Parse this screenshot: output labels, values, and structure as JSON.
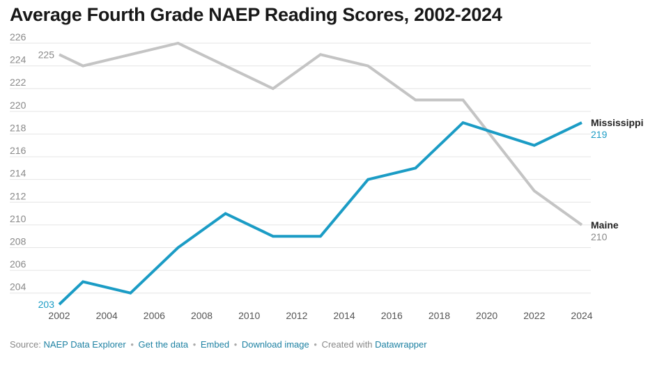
{
  "title": "Average Fourth Grade NAEP Reading Scores, 2002-2024",
  "chart_data": {
    "type": "line",
    "x": [
      2002,
      2003,
      2005,
      2007,
      2009,
      2011,
      2013,
      2015,
      2017,
      2019,
      2022,
      2024
    ],
    "x_ticks": [
      "2002",
      "2004",
      "2006",
      "2008",
      "2010",
      "2012",
      "2014",
      "2016",
      "2018",
      "2020",
      "2022",
      "2024"
    ],
    "y_ticks": [
      "204",
      "206",
      "208",
      "210",
      "212",
      "214",
      "216",
      "218",
      "220",
      "222",
      "224",
      "226"
    ],
    "xlim": [
      2002,
      2024
    ],
    "ylim": [
      203,
      226
    ],
    "grid": true,
    "series": [
      {
        "name": "Maine",
        "color": "#c4c4c4",
        "values": [
          225,
          224,
          225,
          226,
          224,
          222,
          225,
          224,
          221,
          221,
          213,
          210
        ],
        "start_label": "225",
        "end_label": "210"
      },
      {
        "name": "Mississippi",
        "color": "#1b9cc5",
        "values": [
          203,
          205,
          204,
          208,
          211,
          209,
          209,
          214,
          215,
          219,
          217,
          219
        ],
        "start_label": "203",
        "end_label": "219"
      }
    ]
  },
  "footer": {
    "source_label": "Source:",
    "source_link": "NAEP Data Explorer",
    "get_data": "Get the data",
    "embed": "Embed",
    "download": "Download image",
    "created_with": "Created with",
    "datawrapper": "Datawrapper",
    "separator": "•"
  }
}
